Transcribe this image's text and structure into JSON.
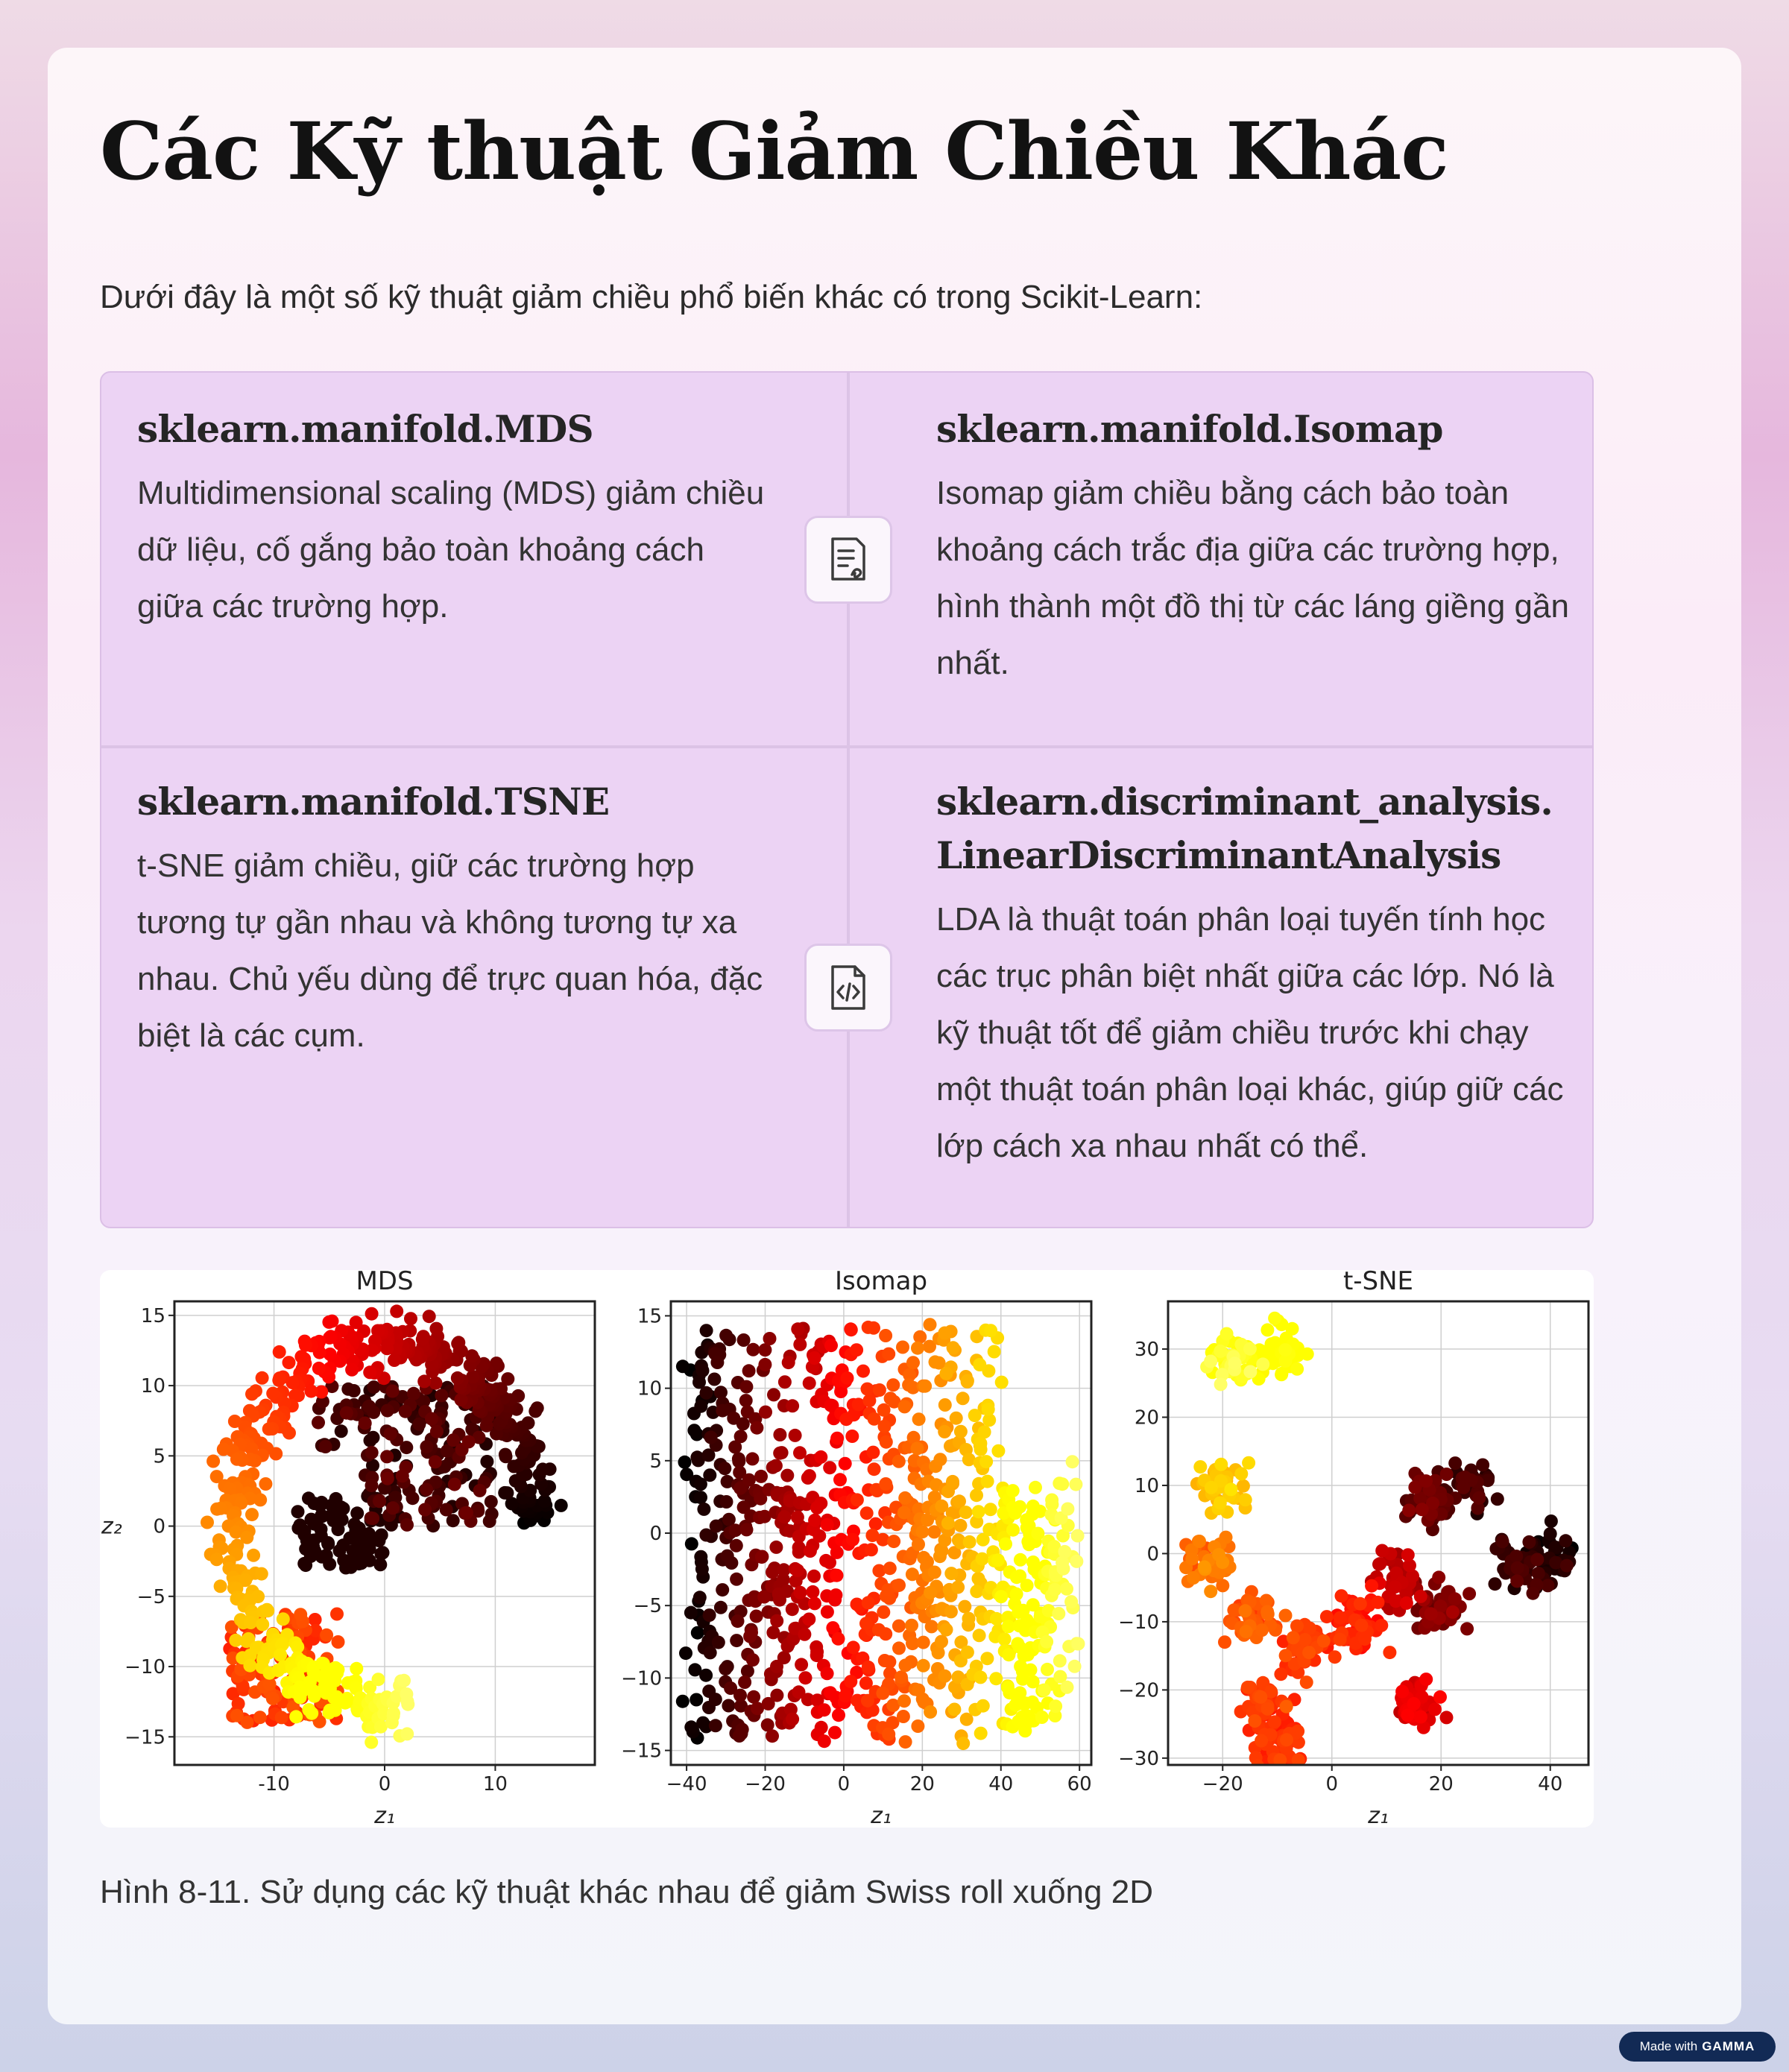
{
  "page": {
    "title": "Các Kỹ thuật Giảm Chiều Khác",
    "intro": "Dưới đây là một số kỹ thuật giảm chiều phổ biến khác có trong Scikit-Learn:",
    "caption": "Hình 8-11. Sử dụng các kỹ thuật khác nhau để giảm Swiss roll xuống 2D"
  },
  "cards": [
    {
      "title": "sklearn.manifold.MDS",
      "body": "Multidimensional scaling (MDS) giảm chiều dữ liệu, cố gắng bảo toàn khoảng cách giữa các trường hợp."
    },
    {
      "title": "sklearn.manifold.Isomap",
      "body": "Isomap giảm chiều bằng cách bảo toàn khoảng cách trắc địa giữa các trường hợp, hình thành một đồ thị từ các láng giềng gần nhất."
    },
    {
      "title": "sklearn.manifold.TSNE",
      "body": "t-SNE giảm chiều, giữ các trường hợp tương tự gần nhau và không tương tự xa nhau. Chủ yếu dùng để trực quan hóa, đặc biệt là các cụm."
    },
    {
      "title": "sklearn.discriminant_analysis.\nLinearDiscriminantAnalysis",
      "body": "LDA là thuật toán phân loại tuyến tính học các trục phân biệt nhất giữa các lớp. Nó là kỹ thuật tốt để giảm chiều trước khi chạy một thuật toán phân loại khác, giúp giữ các lớp cách xa nhau nhất có thể."
    }
  ],
  "icons": {
    "card_top": "document-icon",
    "card_bottom": "code-file-icon"
  },
  "badge": {
    "prefix": "Made with",
    "brand": "GAMMA"
  },
  "chart_data": [
    {
      "type": "scatter",
      "title": "MDS",
      "xlabel": "z₁",
      "ylabel": "z₂",
      "xlim": [
        -19,
        19
      ],
      "ylim": [
        -17,
        16
      ],
      "xticks": [
        "-10",
        "0",
        "10"
      ],
      "xtick_values": [
        -10,
        0,
        10
      ],
      "yticks": [
        "15",
        "10",
        "5",
        "0",
        "−5",
        "−10",
        "−15"
      ],
      "ytick_values": [
        15,
        10,
        5,
        0,
        -5,
        -10,
        -15
      ],
      "grid": true,
      "colormap": "hot"
    },
    {
      "type": "scatter",
      "title": "Isomap",
      "xlabel": "z₁",
      "ylabel": "",
      "xlim": [
        -44,
        63
      ],
      "ylim": [
        -16,
        16
      ],
      "xticks": [
        "−40",
        "−20",
        "0",
        "20",
        "40",
        "60"
      ],
      "xtick_values": [
        -40,
        -20,
        0,
        20,
        40,
        60
      ],
      "yticks": [
        "15",
        "10",
        "5",
        "0",
        "−5",
        "−10",
        "−15"
      ],
      "ytick_values": [
        15,
        10,
        5,
        0,
        -5,
        -10,
        -15
      ],
      "grid": true,
      "colormap": "hot"
    },
    {
      "type": "scatter",
      "title": "t-SNE",
      "xlabel": "z₁",
      "ylabel": "",
      "xlim": [
        -30,
        47
      ],
      "ylim": [
        -31,
        37
      ],
      "xticks": [
        "−20",
        "0",
        "20",
        "40"
      ],
      "xtick_values": [
        -20,
        0,
        20,
        40
      ],
      "yticks": [
        "30",
        "20",
        "10",
        "0",
        "−10",
        "−20",
        "−30"
      ],
      "ytick_values": [
        30,
        20,
        10,
        0,
        -10,
        -20,
        -30
      ],
      "grid": true,
      "colormap": "hot"
    }
  ]
}
